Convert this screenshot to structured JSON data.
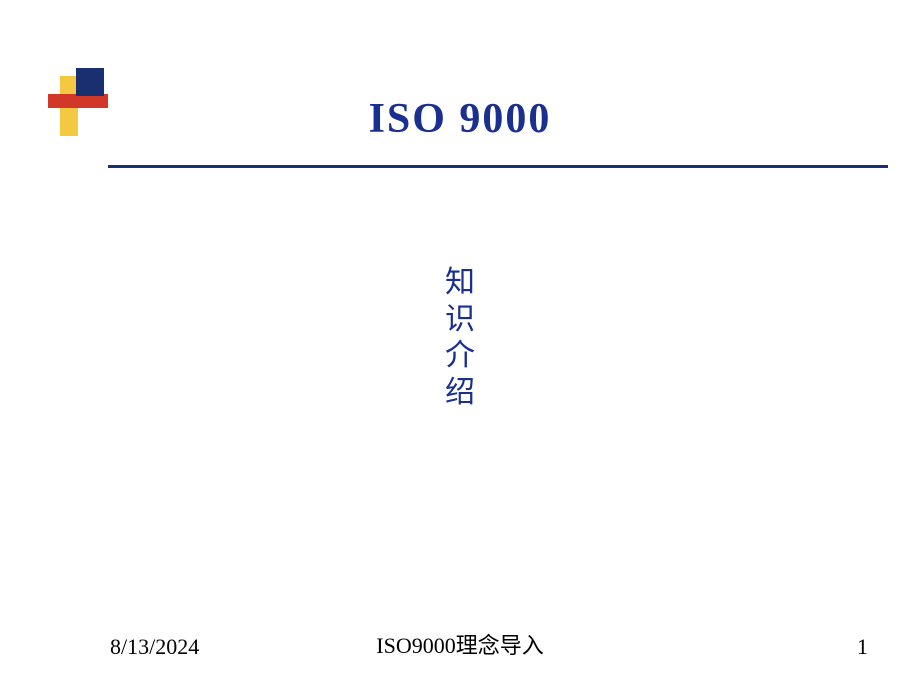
{
  "slide": {
    "title": "ISO  9000",
    "subtitle_chars": [
      "知",
      "识",
      "介",
      "绍"
    ]
  },
  "decoration": {
    "yellow_color": "#f5c842",
    "navy_color": "#1a2f6f",
    "red_color": "#d13828",
    "line_color": "#1a2f6f"
  },
  "footer": {
    "date": "8/13/2024",
    "center": "ISO9000理念导入",
    "page": "1"
  },
  "colors": {
    "title_color": "#1a2f8f",
    "text_color": "#000000",
    "background": "#ffffff"
  }
}
